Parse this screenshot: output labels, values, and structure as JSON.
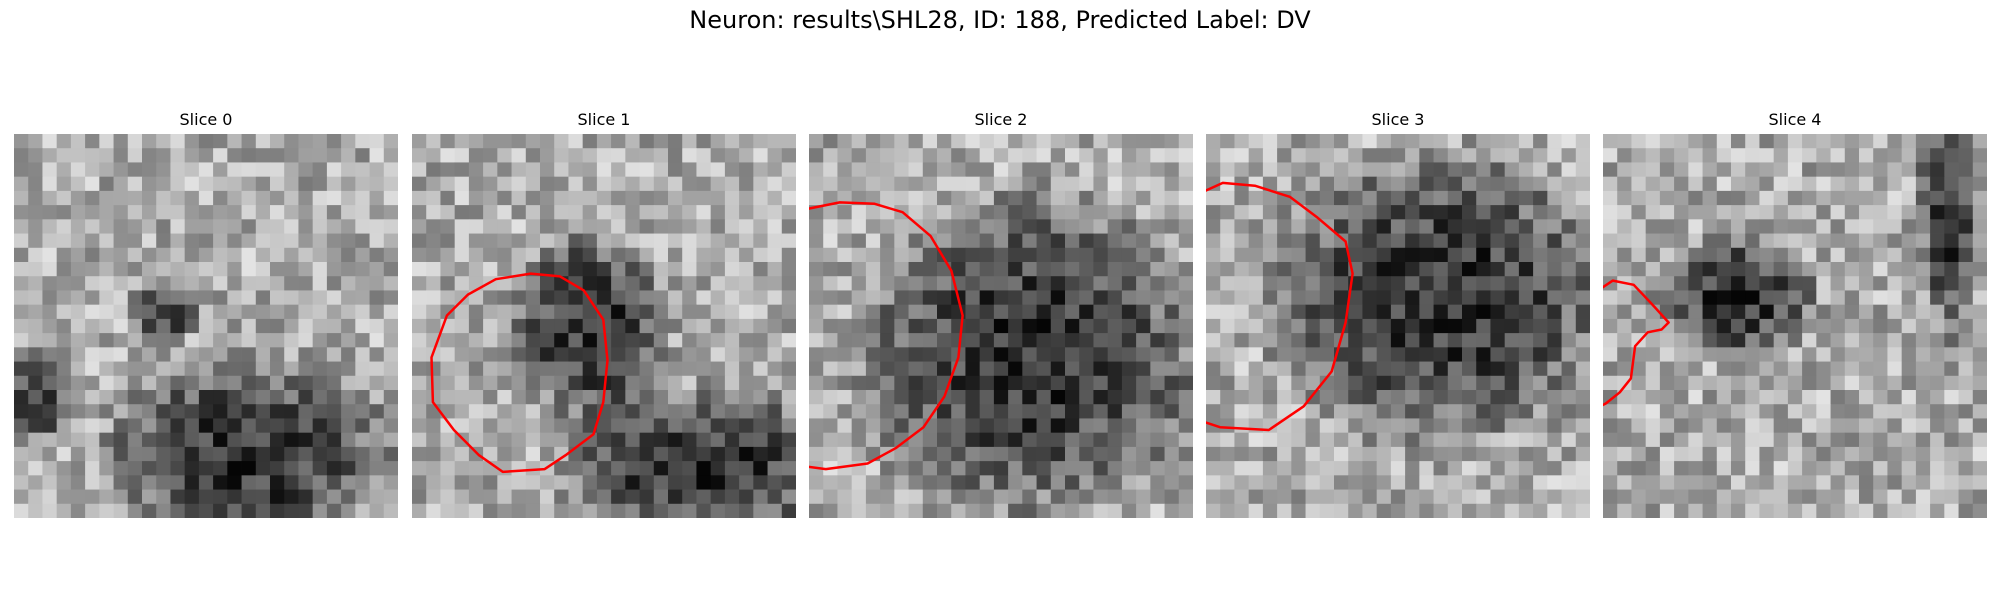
{
  "figure": {
    "title": "Neuron: results\\SHL28, ID: 188, Predicted Label: DV"
  },
  "panels": [
    {
      "title": "Slice 0",
      "contour": null
    },
    {
      "title": "Slice 1",
      "contour": [
        [
          31.6,
          10.2
        ],
        [
          33.3,
          11.2
        ],
        [
          34.7,
          13.3
        ],
        [
          35.0,
          16.2
        ],
        [
          34.7,
          19.2
        ],
        [
          34.0,
          21.5
        ],
        [
          32.0,
          23.0
        ],
        [
          30.5,
          24.0
        ],
        [
          27.5,
          24.2
        ],
        [
          25.8,
          23.0
        ],
        [
          24.0,
          21.2
        ],
        [
          22.5,
          19.2
        ],
        [
          22.4,
          16.0
        ],
        [
          23.5,
          13.0
        ],
        [
          25.0,
          11.5
        ],
        [
          27.0,
          10.4
        ],
        [
          29.5,
          10.0
        ]
      ]
    },
    {
      "title": "Slice 2",
      "contour": [
        [
          45.5,
          5.0
        ],
        [
          47.5,
          5.6
        ],
        [
          49.5,
          7.3
        ],
        [
          51.0,
          9.8
        ],
        [
          51.8,
          13.0
        ],
        [
          51.5,
          16.0
        ],
        [
          50.5,
          18.8
        ],
        [
          49.0,
          21.0
        ],
        [
          47.0,
          22.5
        ],
        [
          45.0,
          23.6
        ],
        [
          42.0,
          24.0
        ],
        [
          39.0,
          23.6
        ],
        [
          37.0,
          22.3
        ],
        [
          35.5,
          20.0
        ],
        [
          34.8,
          17.0
        ],
        [
          35.0,
          13.0
        ],
        [
          36.0,
          9.5
        ],
        [
          37.5,
          7.0
        ],
        [
          40.0,
          5.5
        ],
        [
          43.0,
          4.9
        ]
      ]
    },
    {
      "title": "Slice 3",
      "contour": [
        [
          57.7,
          3.5
        ],
        [
          60.0,
          3.7
        ],
        [
          62.5,
          4.5
        ],
        [
          64.5,
          6.0
        ],
        [
          66.5,
          7.7
        ],
        [
          67.0,
          10.0
        ],
        [
          66.5,
          13.5
        ],
        [
          65.5,
          17.0
        ],
        [
          63.5,
          19.5
        ],
        [
          61.0,
          21.2
        ],
        [
          57.5,
          21.0
        ],
        [
          54.5,
          20.0
        ],
        [
          52.5,
          18.5
        ],
        [
          51.5,
          15.5
        ],
        [
          51.8,
          12.0
        ],
        [
          52.5,
          8.5
        ],
        [
          54.0,
          6.0
        ],
        [
          55.5,
          4.5
        ]
      ]
    },
    {
      "title": "Slice 4",
      "contour": [
        [
          73.0,
          10.5
        ],
        [
          74.5,
          10.8
        ],
        [
          76.0,
          12.4
        ],
        [
          77.0,
          13.5
        ],
        [
          76.5,
          14.0
        ],
        [
          75.5,
          14.2
        ],
        [
          74.6,
          15.2
        ],
        [
          74.3,
          17.5
        ],
        [
          73.5,
          18.5
        ],
        [
          72.5,
          19.3
        ],
        [
          71.5,
          19.8
        ],
        [
          70.0,
          19.5
        ],
        [
          68.7,
          18.6
        ],
        [
          68.0,
          17.4
        ],
        [
          67.8,
          15.5
        ],
        [
          68.1,
          14.0
        ],
        [
          69.0,
          12.8
        ],
        [
          70.5,
          11.8
        ],
        [
          71.8,
          11.3
        ]
      ]
    }
  ],
  "colors": {
    "contour": "#ff0000",
    "background": "#ffffff"
  }
}
